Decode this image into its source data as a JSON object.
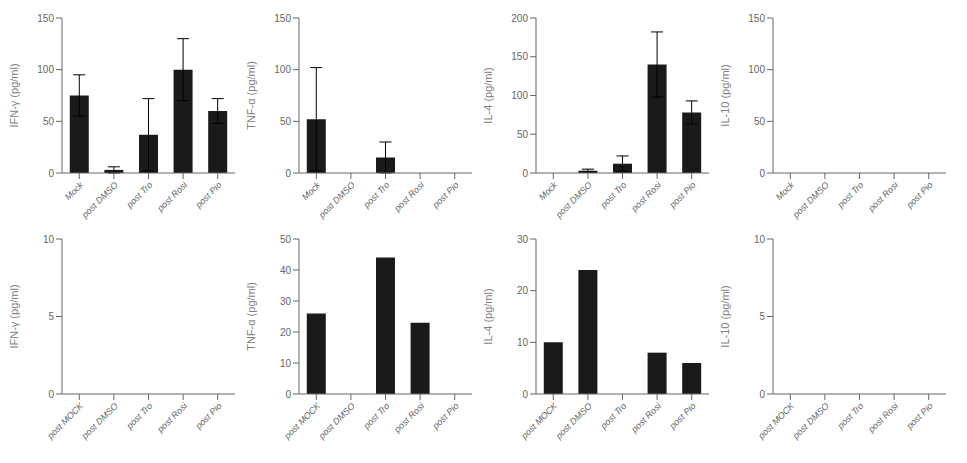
{
  "chart_data": [
    {
      "type": "bar",
      "ylabel": "IFN-γ (pg/ml)",
      "categories": [
        "Mock",
        "post DMSO",
        "post Tro",
        "post Rosi",
        "post Pio"
      ],
      "values": [
        75,
        3,
        37,
        100,
        60
      ],
      "errors": [
        20,
        3,
        35,
        30,
        12
      ],
      "ylim": [
        0,
        150
      ],
      "yticks": [
        0,
        50,
        100,
        150
      ],
      "color": "#1a1a1a"
    },
    {
      "type": "bar",
      "ylabel": "TNF-α (pg/ml)",
      "categories": [
        "Mock",
        "post DMSO",
        "post Tro",
        "post Rosi",
        "post Pio"
      ],
      "values": [
        52,
        0,
        15,
        0,
        0
      ],
      "errors": [
        50,
        0,
        15,
        0,
        0
      ],
      "ylim": [
        0,
        150
      ],
      "yticks": [
        0,
        50,
        100,
        150
      ],
      "color": "#1a1a1a"
    },
    {
      "type": "bar",
      "ylabel": "IL-4 (pg/ml)",
      "categories": [
        "Mock",
        "post DMSO",
        "post Tro",
        "post Rosi",
        "post Pio"
      ],
      "values": [
        0,
        3,
        12,
        140,
        78
      ],
      "errors": [
        0,
        2,
        10,
        42,
        15
      ],
      "ylim": [
        0,
        200
      ],
      "yticks": [
        0,
        50,
        100,
        150,
        200
      ],
      "color": "#1a1a1a"
    },
    {
      "type": "bar",
      "ylabel": "IL-10 (pg/ml)",
      "categories": [
        "Mock",
        "post DMSO",
        "post Tro",
        "post Rosi",
        "post Pio"
      ],
      "values": [
        0,
        0,
        0,
        0,
        0
      ],
      "errors": [
        0,
        0,
        0,
        0,
        0
      ],
      "ylim": [
        0,
        150
      ],
      "yticks": [
        0,
        50,
        100,
        150
      ],
      "color": "#1a1a1a"
    },
    {
      "type": "bar",
      "ylabel": "IFN-γ (pg/ml)",
      "categories": [
        "post MOCK",
        "post DMSO",
        "post Tro",
        "post Rosi",
        "post Pio"
      ],
      "values": [
        0,
        0,
        0,
        0,
        0
      ],
      "errors": [
        0,
        0,
        0,
        0,
        0
      ],
      "ylim": [
        0,
        10
      ],
      "yticks": [
        0,
        5,
        10
      ],
      "color": "#1a1a1a"
    },
    {
      "type": "bar",
      "ylabel": "TNF-α (pg/ml)",
      "categories": [
        "post MOCK",
        "post DMSO",
        "post Tro",
        "post Rosi",
        "post Pio"
      ],
      "values": [
        26,
        0,
        44,
        23,
        0
      ],
      "errors": [
        0,
        0,
        0,
        0,
        0
      ],
      "ylim": [
        0,
        50
      ],
      "yticks": [
        0,
        10,
        20,
        30,
        40,
        50
      ],
      "color": "#1a1a1a"
    },
    {
      "type": "bar",
      "ylabel": "IL-4 (pg/ml)",
      "categories": [
        "post MOCK",
        "post DMSO",
        "post Tro",
        "post Rosi",
        "post Pio"
      ],
      "values": [
        10,
        24,
        0,
        8,
        6
      ],
      "errors": [
        0,
        0,
        0,
        0,
        0
      ],
      "ylim": [
        0,
        30
      ],
      "yticks": [
        0,
        10,
        20,
        30
      ],
      "color": "#1a1a1a"
    },
    {
      "type": "bar",
      "ylabel": "IL-10 (pg/ml)",
      "categories": [
        "post MOCK",
        "post DMSO",
        "post Tro",
        "post Rosi",
        "post Pio"
      ],
      "values": [
        0,
        0,
        0,
        0,
        0
      ],
      "errors": [
        0,
        0,
        0,
        0,
        0
      ],
      "ylim": [
        0,
        10
      ],
      "yticks": [
        0,
        5,
        10
      ],
      "color": "#1a1a1a"
    }
  ]
}
